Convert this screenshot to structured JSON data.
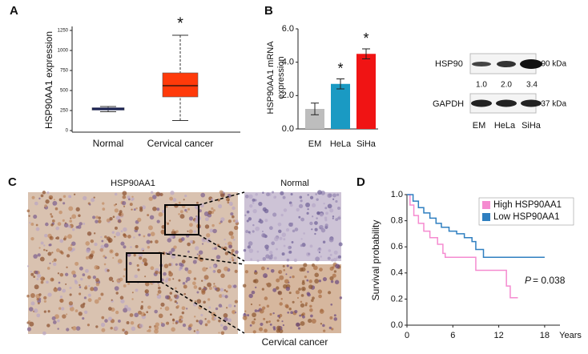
{
  "panel_labels": [
    "A",
    "B",
    "C",
    "D"
  ],
  "chart_data": [
    {
      "type": "box",
      "ylabel": "HSP90AA1 expression",
      "categories": [
        "Normal",
        "Cervical cancer"
      ],
      "boxes": [
        {
          "whisker_low": 235,
          "q1": 255,
          "median": 270,
          "q3": 285,
          "whisker_high": 300,
          "color": "#2a3fbf"
        },
        {
          "whisker_low": 125,
          "q1": 420,
          "median": 560,
          "q3": 720,
          "whisker_high": 1190,
          "color": "#ff3a0a"
        }
      ],
      "annotations": [
        null,
        "*"
      ],
      "ylim": [
        0,
        1300
      ],
      "yticks": [
        0,
        250,
        500,
        750,
        1000,
        1250
      ]
    },
    {
      "type": "bar",
      "ylabel_lines": [
        "HSP90AA1 mRNA",
        "expression"
      ],
      "categories": [
        "EM",
        "HeLa",
        "SiHa"
      ],
      "values": [
        1.2,
        2.7,
        4.5
      ],
      "errors": [
        0.35,
        0.3,
        0.3
      ],
      "colors": [
        "#bdbdbd",
        "#1a9ac3",
        "#f01414"
      ],
      "annotations": [
        null,
        "*",
        "*"
      ],
      "ylim": [
        0,
        6
      ],
      "yticks": [
        {
          "value": 0,
          "label": "0.0"
        },
        {
          "value": 2,
          "label": "2.0"
        },
        {
          "value": 4,
          "label": "4.0"
        },
        {
          "value": 6,
          "label": "6.0"
        }
      ]
    },
    {
      "type": "step",
      "ylabel": "Survival probability",
      "xlabel": "Years",
      "xlim": [
        0,
        20
      ],
      "ylim": [
        0,
        1
      ],
      "xticks": [
        0,
        6,
        12,
        18
      ],
      "yticks": [
        {
          "value": 0,
          "label": "0.0"
        },
        {
          "value": 0.2,
          "label": "0.2"
        },
        {
          "value": 0.4,
          "label": "0.4"
        },
        {
          "value": 0.6,
          "label": "0.6"
        },
        {
          "value": 0.8,
          "label": "0.8"
        },
        {
          "value": 1,
          "label": "1.0"
        }
      ],
      "legend": "top-right",
      "series": [
        {
          "name": "High HSP90AA1",
          "color": "#f58bd0",
          "x": [
            0,
            0.4,
            0.9,
            1.5,
            2.2,
            3,
            4,
            4.7,
            5,
            9,
            13,
            13.5,
            14.5
          ],
          "values": [
            1.0,
            0.92,
            0.84,
            0.78,
            0.72,
            0.67,
            0.62,
            0.55,
            0.52,
            0.42,
            0.3,
            0.21,
            0.21
          ]
        },
        {
          "name": "Low HSP90AA1",
          "color": "#2f7fc0",
          "x": [
            0,
            0.8,
            1.5,
            2.2,
            3,
            3.8,
            4.5,
            5.5,
            6.5,
            7.5,
            8.5,
            9,
            10,
            18
          ],
          "values": [
            1.0,
            0.95,
            0.9,
            0.86,
            0.82,
            0.78,
            0.75,
            0.72,
            0.7,
            0.67,
            0.64,
            0.58,
            0.52,
            0.52
          ]
        }
      ],
      "annotation": {
        "p": "P",
        "text": "= 0.038"
      }
    }
  ],
  "blot": {
    "rows": [
      "HSP90",
      "GAPDH"
    ],
    "sizes": [
      "-90 kDa",
      "-37 kDa"
    ],
    "quantities": [
      "1.0",
      "2.0",
      "3.4"
    ],
    "lanes": [
      "EM",
      "HeLa",
      "SiHa"
    ]
  },
  "ihc": {
    "title": "HSP90AA1",
    "insets": [
      "Normal",
      "Cervical cancer"
    ]
  }
}
